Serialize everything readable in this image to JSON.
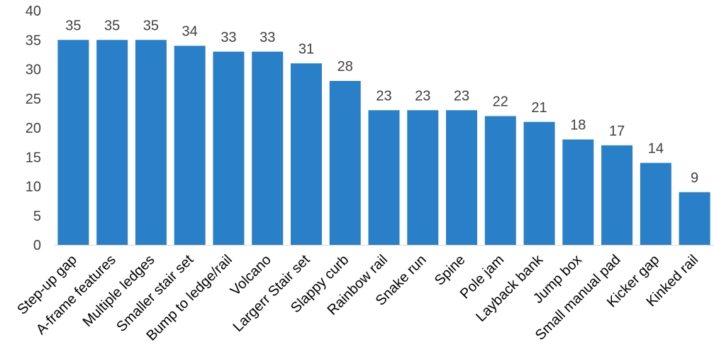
{
  "chart_data": {
    "type": "bar",
    "title": "",
    "xlabel": "",
    "ylabel": "",
    "categories": [
      "Step-up gap",
      "A-frame features",
      "Multiple ledges",
      "Smaller stair set",
      "Bump to ledge/rail",
      "Volcano",
      "Largerr Stair set",
      "Slappy curb",
      "Rainbow rail",
      "Snake run",
      "Spine",
      "Pole jam",
      "Layback bank",
      "Jump box",
      "Small manual pad",
      "Kicker gap",
      "Kinked rail"
    ],
    "values": [
      35,
      35,
      35,
      34,
      33,
      33,
      31,
      28,
      23,
      23,
      23,
      22,
      21,
      18,
      17,
      14,
      9
    ],
    "ylim": [
      0,
      40
    ],
    "yticks": [
      0,
      5,
      10,
      15,
      20,
      25,
      30,
      35,
      40
    ],
    "grid": false,
    "legend": false,
    "bar_color": "#2980C9",
    "axis_color": "#D9D9D9"
  }
}
